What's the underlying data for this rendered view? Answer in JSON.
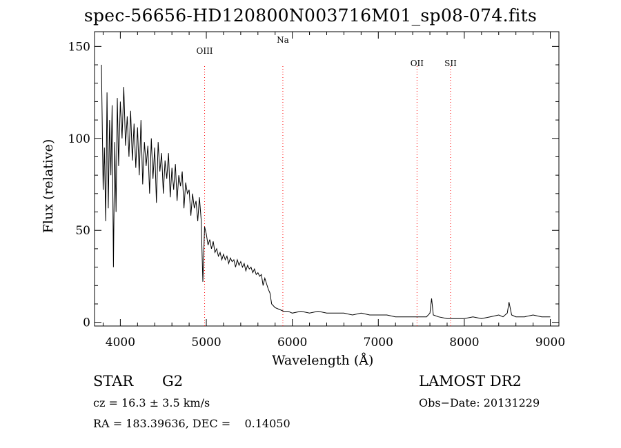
{
  "chart_data": {
    "type": "line",
    "title": "spec-56656-HD120800N003716M01_sp08-074.fits",
    "xlabel": "Wavelength (Å)",
    "ylabel": "Flux (relative)",
    "xlim": [
      3700,
      9100
    ],
    "ylim": [
      -2,
      158
    ],
    "xticks": [
      4000,
      5000,
      6000,
      7000,
      8000,
      9000
    ],
    "yticks": [
      0,
      50,
      100,
      150
    ],
    "grid": false,
    "line_color": "#000000",
    "marker_color": "#ff0000",
    "series": [
      {
        "x": [
          3780,
          3800,
          3815,
          3830,
          3845,
          3860,
          3875,
          3890,
          3905,
          3920,
          3935,
          3950,
          3965,
          3980,
          4000,
          4020,
          4040,
          4060,
          4080,
          4100,
          4120,
          4140,
          4160,
          4180,
          4200,
          4220,
          4240,
          4260,
          4280,
          4300,
          4320,
          4340,
          4360,
          4380,
          4400,
          4420,
          4440,
          4460,
          4480,
          4500,
          4520,
          4540,
          4560,
          4580,
          4600,
          4620,
          4640,
          4660,
          4680,
          4700,
          4720,
          4740,
          4760,
          4780,
          4800,
          4820,
          4840,
          4860,
          4880,
          4900,
          4920,
          4940,
          4960,
          4980,
          5000,
          5020,
          5040,
          5060,
          5080,
          5100,
          5120,
          5140,
          5160,
          5180,
          5200,
          5220,
          5240,
          5260,
          5280,
          5300,
          5320,
          5340,
          5360,
          5380,
          5400,
          5420,
          5440,
          5460,
          5480,
          5500,
          5520,
          5540,
          5560,
          5580,
          5600,
          5620,
          5640,
          5660,
          5680,
          5700,
          5720,
          5740,
          5760,
          5780,
          5800,
          5850,
          5900,
          5950,
          6000,
          6100,
          6200,
          6300,
          6400,
          6500,
          6600,
          6700,
          6800,
          6900,
          7000,
          7100,
          7200,
          7300,
          7400,
          7500,
          7560,
          7600,
          7620,
          7640,
          7700,
          7800,
          7900,
          8000,
          8100,
          8200,
          8300,
          8400,
          8450,
          8500,
          8520,
          8550,
          8600,
          8700,
          8800,
          8900,
          9000
        ],
        "y": [
          140,
          72,
          95,
          55,
          125,
          62,
          110,
          80,
          118,
          30,
          98,
          60,
          122,
          85,
          120,
          100,
          128,
          96,
          112,
          90,
          115,
          88,
          108,
          84,
          106,
          80,
          110,
          75,
          98,
          85,
          96,
          70,
          100,
          78,
          95,
          65,
          98,
          82,
          92,
          70,
          88,
          78,
          92,
          68,
          84,
          72,
          86,
          66,
          80,
          74,
          82,
          62,
          76,
          70,
          72,
          58,
          70,
          62,
          66,
          55,
          68,
          56,
          22,
          52,
          48,
          42,
          45,
          40,
          44,
          38,
          40,
          36,
          38,
          34,
          37,
          34,
          36,
          32,
          35,
          33,
          34,
          30,
          34,
          31,
          33,
          30,
          32,
          28,
          31,
          29,
          30,
          27,
          29,
          26,
          27,
          25,
          26,
          20,
          24,
          21,
          18,
          16,
          10,
          9,
          8,
          7,
          6,
          6,
          5,
          6,
          5,
          6,
          5,
          5,
          5,
          4,
          5,
          4,
          4,
          4,
          3,
          3,
          3,
          3,
          3,
          5,
          13,
          4,
          3,
          2,
          2,
          2,
          3,
          2,
          3,
          4,
          3,
          5,
          11,
          4,
          3,
          3,
          4,
          3,
          3
        ]
      }
    ],
    "markers": [
      {
        "x": 4980,
        "label": "OIII"
      },
      {
        "x": 5890,
        "label": "Na"
      },
      {
        "x": 7450,
        "label": "OII"
      },
      {
        "x": 7840,
        "label": "SII"
      }
    ]
  },
  "footer": {
    "object_type": "STAR",
    "subclass": "G2",
    "survey": "LAMOST DR2",
    "cz": "cz = 16.3 ± 3.5 km/s",
    "obs_date": "Obs−Date: 20131229",
    "coords": "RA = 183.39636, DEC =    0.14050"
  }
}
